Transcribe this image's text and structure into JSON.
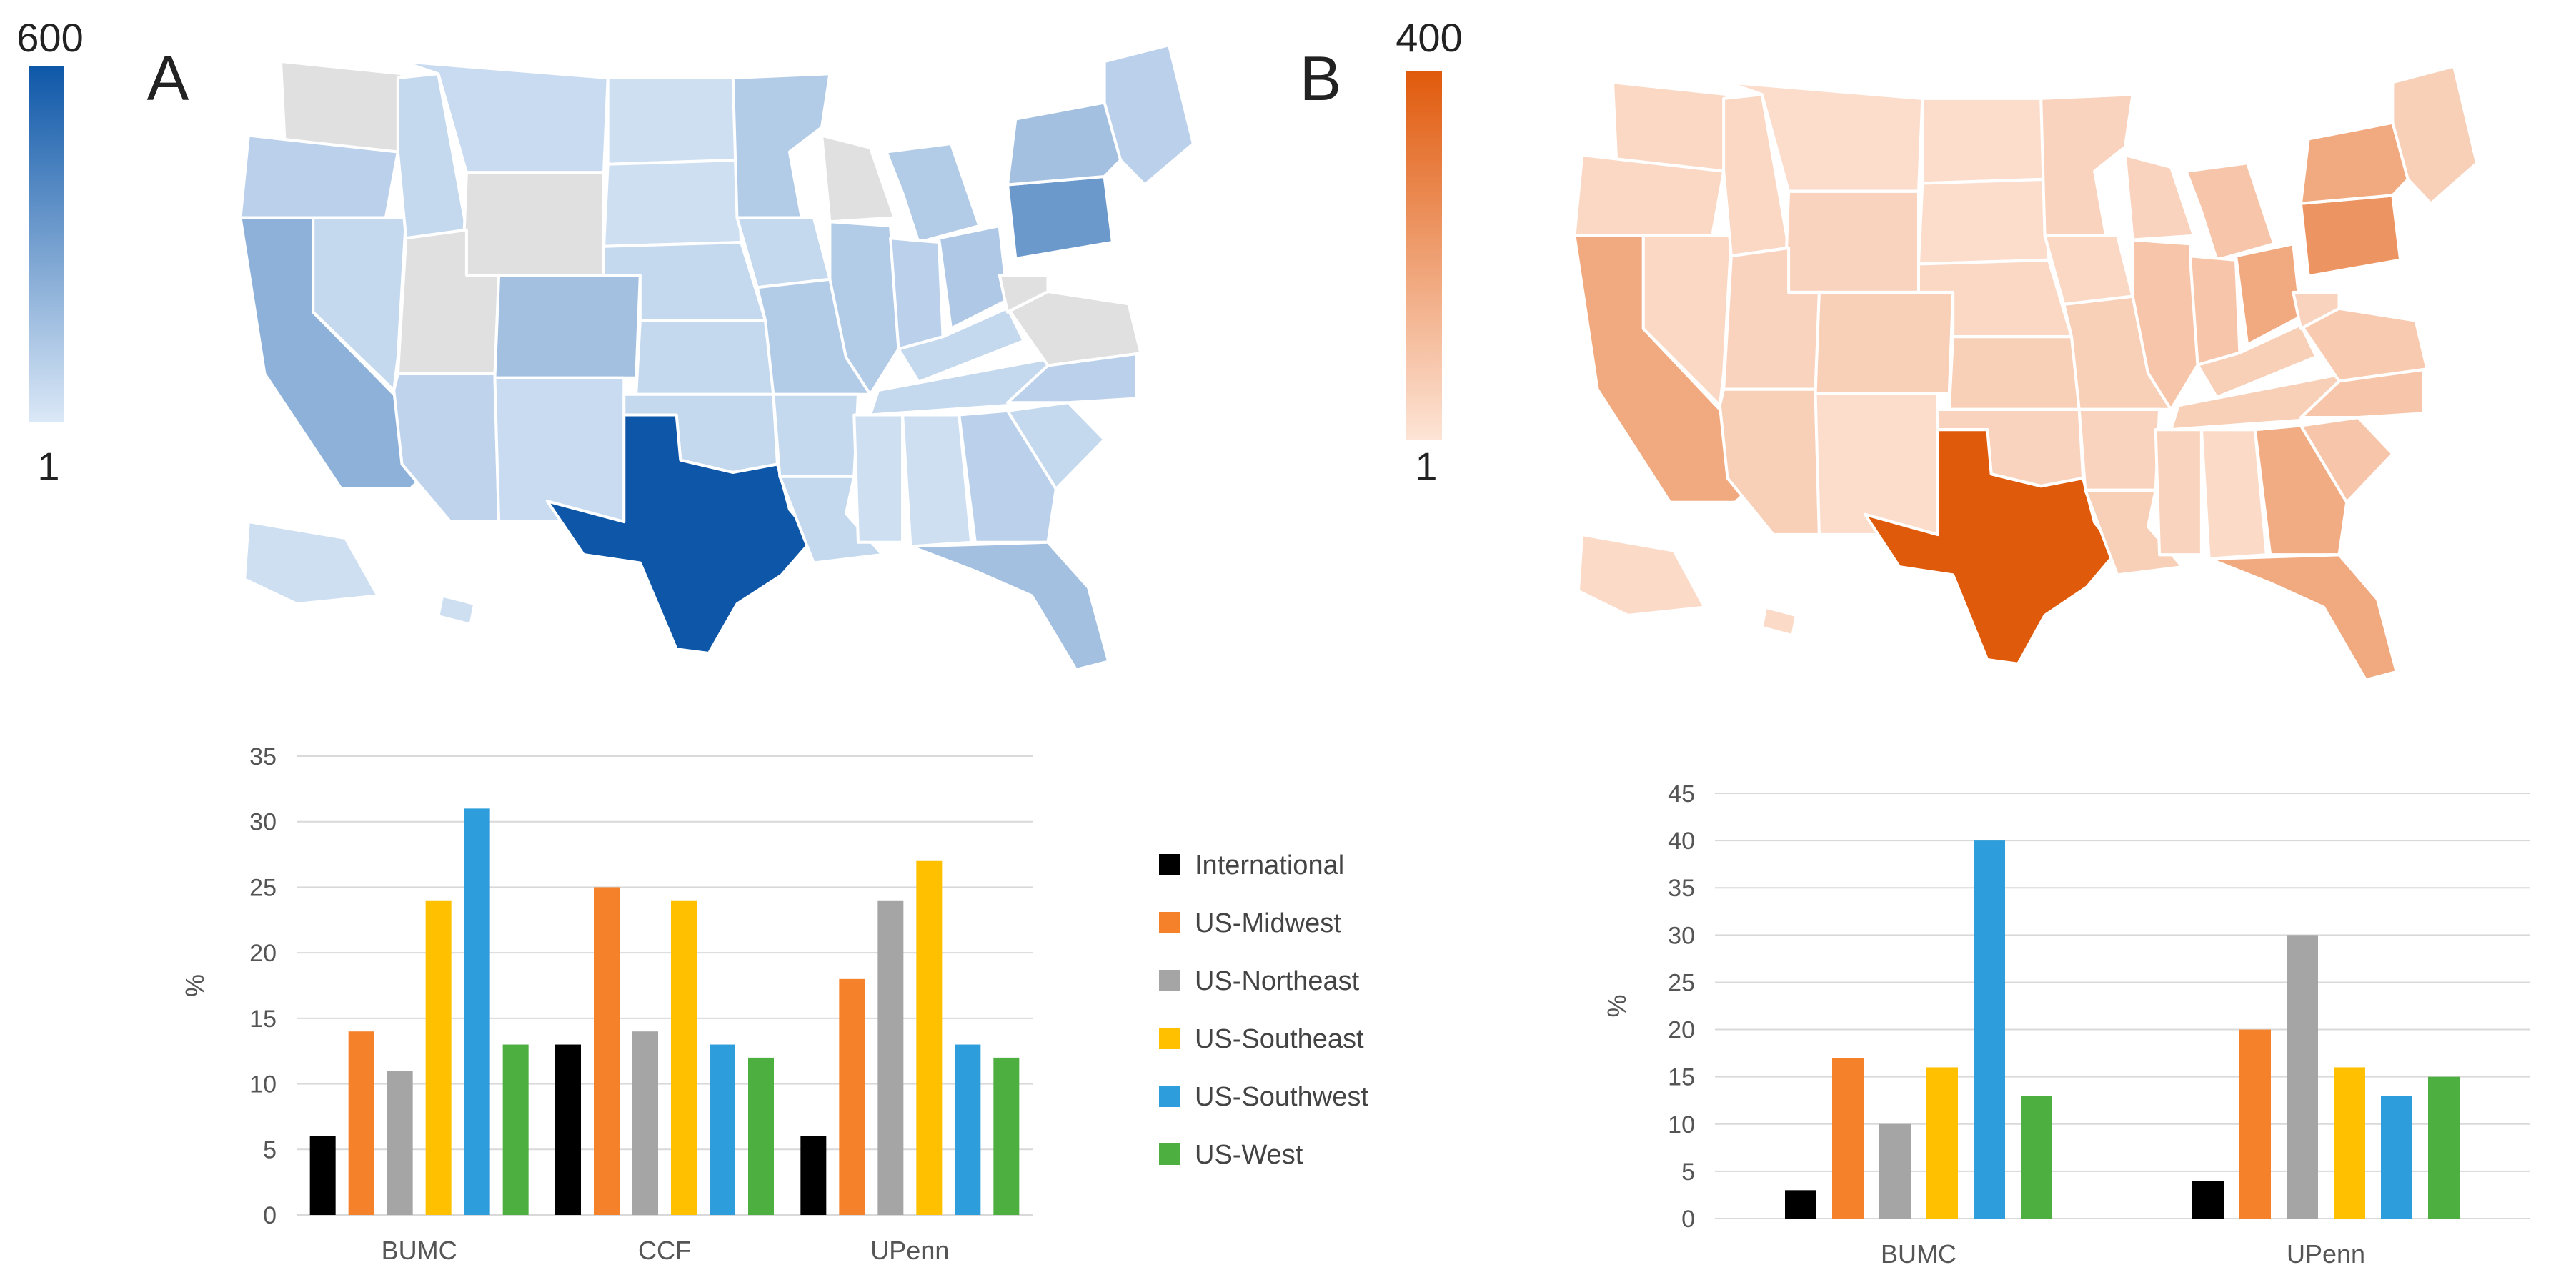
{
  "panels": {
    "a": {
      "label": "A",
      "colorbar": {
        "max_label": "600",
        "min_label": "1",
        "max_value": 600,
        "min_value": 1,
        "color_low": "#dbe8f7",
        "color_high": "#0e57a8"
      },
      "states": {
        "WA": 0,
        "OR": 60,
        "CA": 180,
        "ID": 40,
        "NV": 40,
        "MT": 30,
        "WY": 0,
        "UT": 0,
        "CO": 120,
        "AZ": 50,
        "NM": 30,
        "ND": 20,
        "SD": 20,
        "NE": 40,
        "KS": 40,
        "OK": 40,
        "TX": 600,
        "MN": 80,
        "IA": 40,
        "MO": 80,
        "AR": 40,
        "LA": 40,
        "WI": 0,
        "IL": 80,
        "MI": 80,
        "IN": 60,
        "OH": 90,
        "KY": 40,
        "TN": 40,
        "MS": 20,
        "AL": 20,
        "GA": 60,
        "FL": 120,
        "SC": 40,
        "NC": 60,
        "VA": 0,
        "WV": 0,
        "PA": 280,
        "NY": 120,
        "NE_states": 60,
        "AK": 20,
        "HI": 20
      }
    },
    "b": {
      "label": "B",
      "colorbar": {
        "max_label": "400",
        "min_label": "1",
        "max_value": 400,
        "min_value": 1,
        "color_low": "#fde4d6",
        "color_high": "#e05a0c"
      },
      "states": {
        "WA": 20,
        "OR": 20,
        "CA": 140,
        "ID": 20,
        "NV": 20,
        "MT": 10,
        "WY": 30,
        "UT": 30,
        "CO": 40,
        "AZ": 40,
        "NM": 10,
        "ND": 10,
        "SD": 10,
        "NE": 20,
        "KS": 40,
        "OK": 30,
        "TX": 400,
        "MN": 30,
        "IA": 20,
        "MO": 40,
        "AR": 30,
        "LA": 40,
        "WI": 30,
        "IL": 60,
        "MI": 60,
        "IN": 60,
        "OH": 140,
        "KY": 40,
        "TN": 40,
        "MS": 30,
        "AL": 15,
        "GA": 130,
        "FL": 140,
        "SC": 60,
        "NC": 60,
        "VA": 50,
        "WV": 30,
        "PA": 200,
        "NY": 140,
        "NE_states": 40,
        "AK": 15,
        "HI": 15
      }
    }
  },
  "legend": {
    "items": [
      {
        "label": "International",
        "color": "#000000"
      },
      {
        "label": "US-Midwest",
        "color": "#f5822b"
      },
      {
        "label": "US-Northeast",
        "color": "#a5a5a5"
      },
      {
        "label": "US-Southeast",
        "color": "#ffc000"
      },
      {
        "label": "US-Southwest",
        "color": "#2e9ddb"
      },
      {
        "label": "US-West",
        "color": "#4caf3f"
      }
    ]
  },
  "chart_data": [
    {
      "type": "bar",
      "title": "",
      "xlabel": "",
      "ylabel": "%",
      "ylim": [
        0,
        35
      ],
      "yticks": [
        "0",
        "5",
        "10",
        "15",
        "20",
        "25",
        "30",
        "35"
      ],
      "grid": true,
      "categories": [
        "BUMC",
        "CCF",
        "UPenn"
      ],
      "series": [
        {
          "name": "International",
          "values": [
            6,
            13,
            6
          ]
        },
        {
          "name": "US-Midwest",
          "values": [
            14,
            25,
            18
          ]
        },
        {
          "name": "US-Northeast",
          "values": [
            11,
            14,
            24
          ]
        },
        {
          "name": "US-Southeast",
          "values": [
            24,
            24,
            27
          ]
        },
        {
          "name": "US-Southwest",
          "values": [
            31,
            13,
            13
          ]
        },
        {
          "name": "US-West",
          "values": [
            13,
            12,
            12
          ]
        }
      ]
    },
    {
      "type": "bar",
      "title": "",
      "xlabel": "",
      "ylabel": "%",
      "ylim": [
        0,
        45
      ],
      "yticks": [
        "0",
        "5",
        "10",
        "15",
        "20",
        "25",
        "30",
        "35",
        "40",
        "45"
      ],
      "grid": true,
      "categories": [
        "BUMC",
        "UPenn"
      ],
      "series": [
        {
          "name": "International",
          "values": [
            3,
            4
          ]
        },
        {
          "name": "US-Midwest",
          "values": [
            17,
            20
          ]
        },
        {
          "name": "US-Northeast",
          "values": [
            10,
            30
          ]
        },
        {
          "name": "US-Southeast",
          "values": [
            16,
            16
          ]
        },
        {
          "name": "US-Southwest",
          "values": [
            40,
            13
          ]
        },
        {
          "name": "US-West",
          "values": [
            13,
            15
          ]
        }
      ]
    }
  ]
}
